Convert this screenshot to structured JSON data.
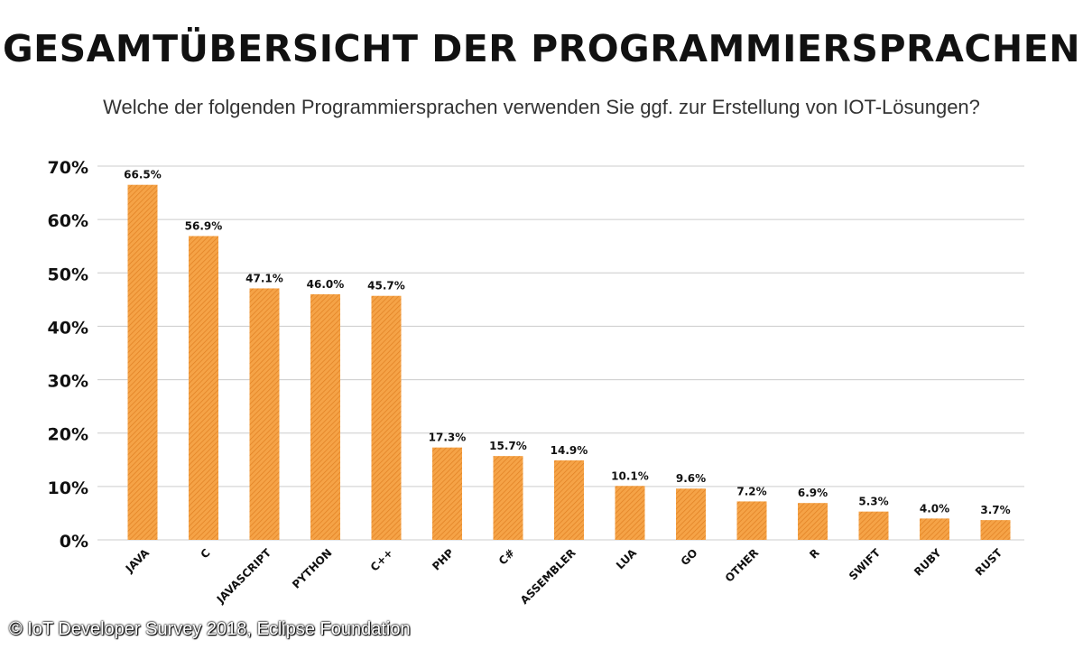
{
  "header": {
    "title": "GESAMTÜBERSICHT DER PROGRAMMIERSPRACHEN",
    "subtitle": "Welche der folgenden Programmiersprachen verwenden Sie ggf. zur Erstellung von IOT-Lösungen?"
  },
  "source": "© IoT Developer Survey 2018, Eclipse Foundation",
  "colors": {
    "bar": "#f5a347",
    "bar_hatch": "#e07f22",
    "grid": "#cccccc",
    "text": "#111111"
  },
  "chart_data": {
    "type": "bar",
    "categories": [
      "JAVA",
      "C",
      "JAVASCRIPT",
      "PYTHON",
      "C++",
      "PHP",
      "C#",
      "ASSEMBLER",
      "LUA",
      "GO",
      "OTHER",
      "R",
      "SWIFT",
      "RUBY",
      "RUST"
    ],
    "values": [
      66.5,
      56.9,
      47.1,
      46.0,
      45.7,
      17.3,
      15.7,
      14.9,
      10.1,
      9.6,
      7.2,
      6.9,
      5.3,
      4.0,
      3.7
    ],
    "value_labels": [
      "66.5%",
      "56.9%",
      "47.1%",
      "46.0%",
      "45.7%",
      "17.3%",
      "15.7%",
      "14.9%",
      "10.1%",
      "9.6%",
      "7.2%",
      "6.9%",
      "5.3%",
      "4.0%",
      "3.7%"
    ],
    "yticks": [
      0,
      10,
      20,
      30,
      40,
      50,
      60,
      70
    ],
    "ytick_labels": [
      "0%",
      "10%",
      "20%",
      "30%",
      "40%",
      "50%",
      "60%",
      "70%"
    ],
    "ylim": [
      0,
      70
    ],
    "grid": true
  }
}
